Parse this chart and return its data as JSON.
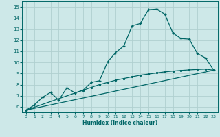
{
  "xlabel": "Humidex (Indice chaleur)",
  "bg_color": "#cde8e8",
  "grid_color": "#b0d0d0",
  "line_color": "#006666",
  "xlim": [
    -0.5,
    23.5
  ],
  "ylim": [
    5.5,
    15.5
  ],
  "xticks": [
    0,
    1,
    2,
    3,
    4,
    5,
    6,
    7,
    8,
    9,
    10,
    11,
    12,
    13,
    14,
    15,
    16,
    17,
    18,
    19,
    20,
    21,
    22,
    23
  ],
  "yticks": [
    6,
    7,
    8,
    9,
    10,
    11,
    12,
    13,
    14,
    15
  ],
  "line1_x": [
    0,
    1,
    2,
    3,
    4,
    5,
    6,
    7,
    8,
    9,
    10,
    11,
    12,
    13,
    14,
    15,
    16,
    17,
    18,
    19,
    20,
    21,
    22,
    23
  ],
  "line1_y": [
    5.7,
    6.15,
    6.85,
    7.3,
    6.6,
    7.7,
    7.25,
    7.5,
    8.2,
    8.35,
    10.05,
    10.9,
    11.5,
    13.3,
    13.5,
    14.75,
    14.8,
    14.35,
    12.65,
    12.15,
    12.1,
    10.8,
    10.4,
    9.3
  ],
  "line2_x": [
    0,
    7,
    8,
    9,
    10,
    11,
    12,
    13,
    14,
    15,
    16,
    17,
    18,
    19,
    20,
    21,
    22,
    23
  ],
  "line2_y": [
    5.7,
    7.5,
    7.75,
    8.0,
    8.2,
    8.4,
    8.55,
    8.7,
    8.85,
    8.95,
    9.05,
    9.15,
    9.22,
    9.28,
    9.33,
    9.37,
    9.4,
    9.3
  ],
  "line3_x": [
    0,
    23
  ],
  "line3_y": [
    5.7,
    9.3
  ]
}
